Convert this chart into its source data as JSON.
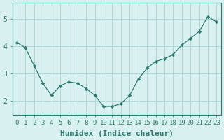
{
  "x": [
    0,
    1,
    2,
    3,
    4,
    5,
    6,
    7,
    8,
    9,
    10,
    11,
    12,
    13,
    14,
    15,
    16,
    17,
    18,
    19,
    20,
    21,
    22,
    23
  ],
  "y": [
    4.15,
    3.95,
    3.3,
    2.65,
    2.2,
    2.55,
    2.7,
    2.65,
    2.45,
    2.2,
    1.8,
    1.8,
    1.9,
    2.2,
    2.8,
    3.2,
    3.45,
    3.55,
    3.7,
    4.05,
    4.3,
    4.55,
    5.1,
    4.9
  ],
  "line_color": "#2d7b6e",
  "marker_color": "#2d7b6e",
  "bg_color": "#d8f0f0",
  "grid_color": "#b0d8d8",
  "xlabel": "Humidex (Indice chaleur)",
  "xlabel_fontsize": 8,
  "tick_fontsize": 6.5,
  "ylim": [
    1.5,
    5.6
  ],
  "xlim": [
    -0.5,
    23.5
  ],
  "yticks": [
    2,
    3,
    4,
    5
  ],
  "xticks": [
    0,
    1,
    2,
    3,
    4,
    5,
    6,
    7,
    8,
    9,
    10,
    11,
    12,
    13,
    14,
    15,
    16,
    17,
    18,
    19,
    20,
    21,
    22,
    23
  ]
}
